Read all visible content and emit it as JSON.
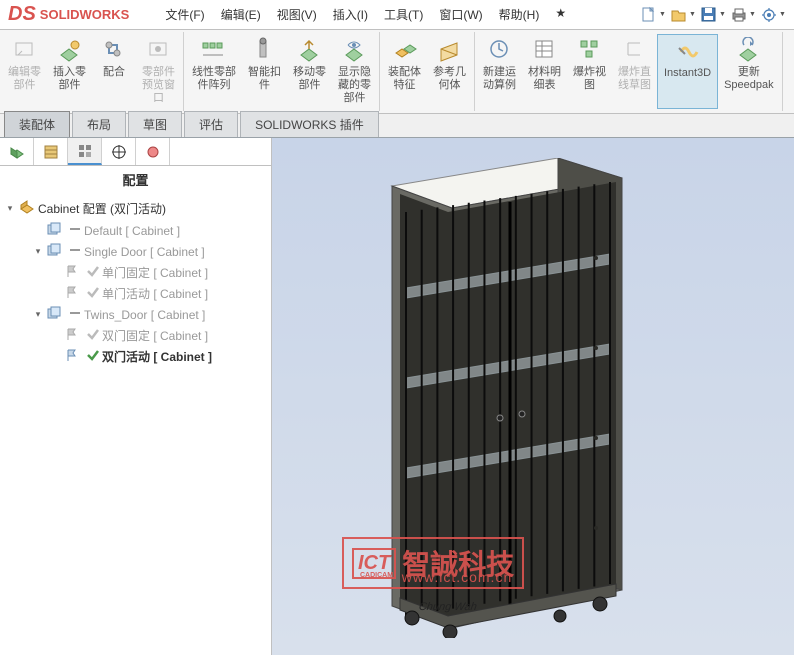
{
  "app": {
    "name": "SOLIDWORKS",
    "logo_color": "#d9534f"
  },
  "menu": [
    {
      "label": "文件(F)"
    },
    {
      "label": "编辑(E)"
    },
    {
      "label": "视图(V)"
    },
    {
      "label": "插入(I)"
    },
    {
      "label": "工具(T)"
    },
    {
      "label": "窗口(W)"
    },
    {
      "label": "帮助(H)"
    },
    {
      "label": "★"
    }
  ],
  "qat": [
    "new",
    "open",
    "save",
    "print",
    "undo"
  ],
  "ribbon": [
    {
      "items": [
        {
          "label": "编辑零\n部件",
          "icon": "edit",
          "disabled": true
        },
        {
          "label": "插入零\n部件",
          "icon": "insert"
        },
        {
          "label": "配合",
          "icon": "mate"
        },
        {
          "label": "零部件\n预览窗\n口",
          "icon": "preview",
          "disabled": true
        }
      ]
    },
    {
      "items": [
        {
          "label": "线性零部\n件阵列",
          "icon": "linear"
        },
        {
          "label": "智能扣\n件",
          "icon": "smart"
        },
        {
          "label": "移动零\n部件",
          "icon": "move"
        },
        {
          "label": "显示隐\n藏的零\n部件",
          "icon": "showhide"
        }
      ]
    },
    {
      "items": [
        {
          "label": "装配体\n特征",
          "icon": "asm"
        },
        {
          "label": "参考几\n何体",
          "icon": "refgeo"
        }
      ]
    },
    {
      "items": [
        {
          "label": "新建运\n动算例",
          "icon": "motion"
        },
        {
          "label": "材料明\n细表",
          "icon": "bom"
        },
        {
          "label": "爆炸视\n图",
          "icon": "explode"
        },
        {
          "label": "爆炸直\n线草图",
          "icon": "expline",
          "disabled": true
        },
        {
          "label": "Instant3D",
          "icon": "i3d",
          "active": true
        },
        {
          "label": "更新\nSpeedpak",
          "icon": "spk"
        }
      ]
    }
  ],
  "tabs": [
    {
      "label": "装配体",
      "active": true
    },
    {
      "label": "布局"
    },
    {
      "label": "草图"
    },
    {
      "label": "评估"
    },
    {
      "label": "SOLIDWORKS 插件"
    }
  ],
  "side": {
    "title": "配置",
    "root": "Cabinet 配置  (双门活动)",
    "tree": [
      {
        "indent": 1,
        "exp": "",
        "label": "Default [ Cabinet ]",
        "checked": false,
        "gray": true
      },
      {
        "indent": 1,
        "exp": "▾",
        "label": "Single Door [ Cabinet ]",
        "checked": false,
        "gray": true
      },
      {
        "indent": 2,
        "exp": "",
        "label": "单门固定 [ Cabinet ]",
        "checked": true,
        "gray": true,
        "checkgray": true
      },
      {
        "indent": 2,
        "exp": "",
        "label": "单门活动 [ Cabinet ]",
        "checked": true,
        "gray": true,
        "checkgray": true
      },
      {
        "indent": 1,
        "exp": "▾",
        "label": "Twins_Door [ Cabinet ]",
        "checked": false,
        "gray": true
      },
      {
        "indent": 2,
        "exp": "",
        "label": "双门固定 [ Cabinet ]",
        "checked": true,
        "gray": true,
        "checkgray": true
      },
      {
        "indent": 2,
        "exp": "",
        "label": "双门活动 [ Cabinet ]",
        "checked": true,
        "gray": false,
        "bold": true
      }
    ]
  },
  "watermark": {
    "logo": "ICT",
    "sub": "CADICAM",
    "text": "智誠科技",
    "url": "www.ict.com.cn"
  },
  "viewport": {
    "bg_top": "#c8d4e8",
    "bg_bot": "#d8e0ec"
  },
  "cabinet": {
    "body": "#5a5a56",
    "top": "#f4f4f0",
    "shelf": "#aeb7ba",
    "bars": 14
  }
}
